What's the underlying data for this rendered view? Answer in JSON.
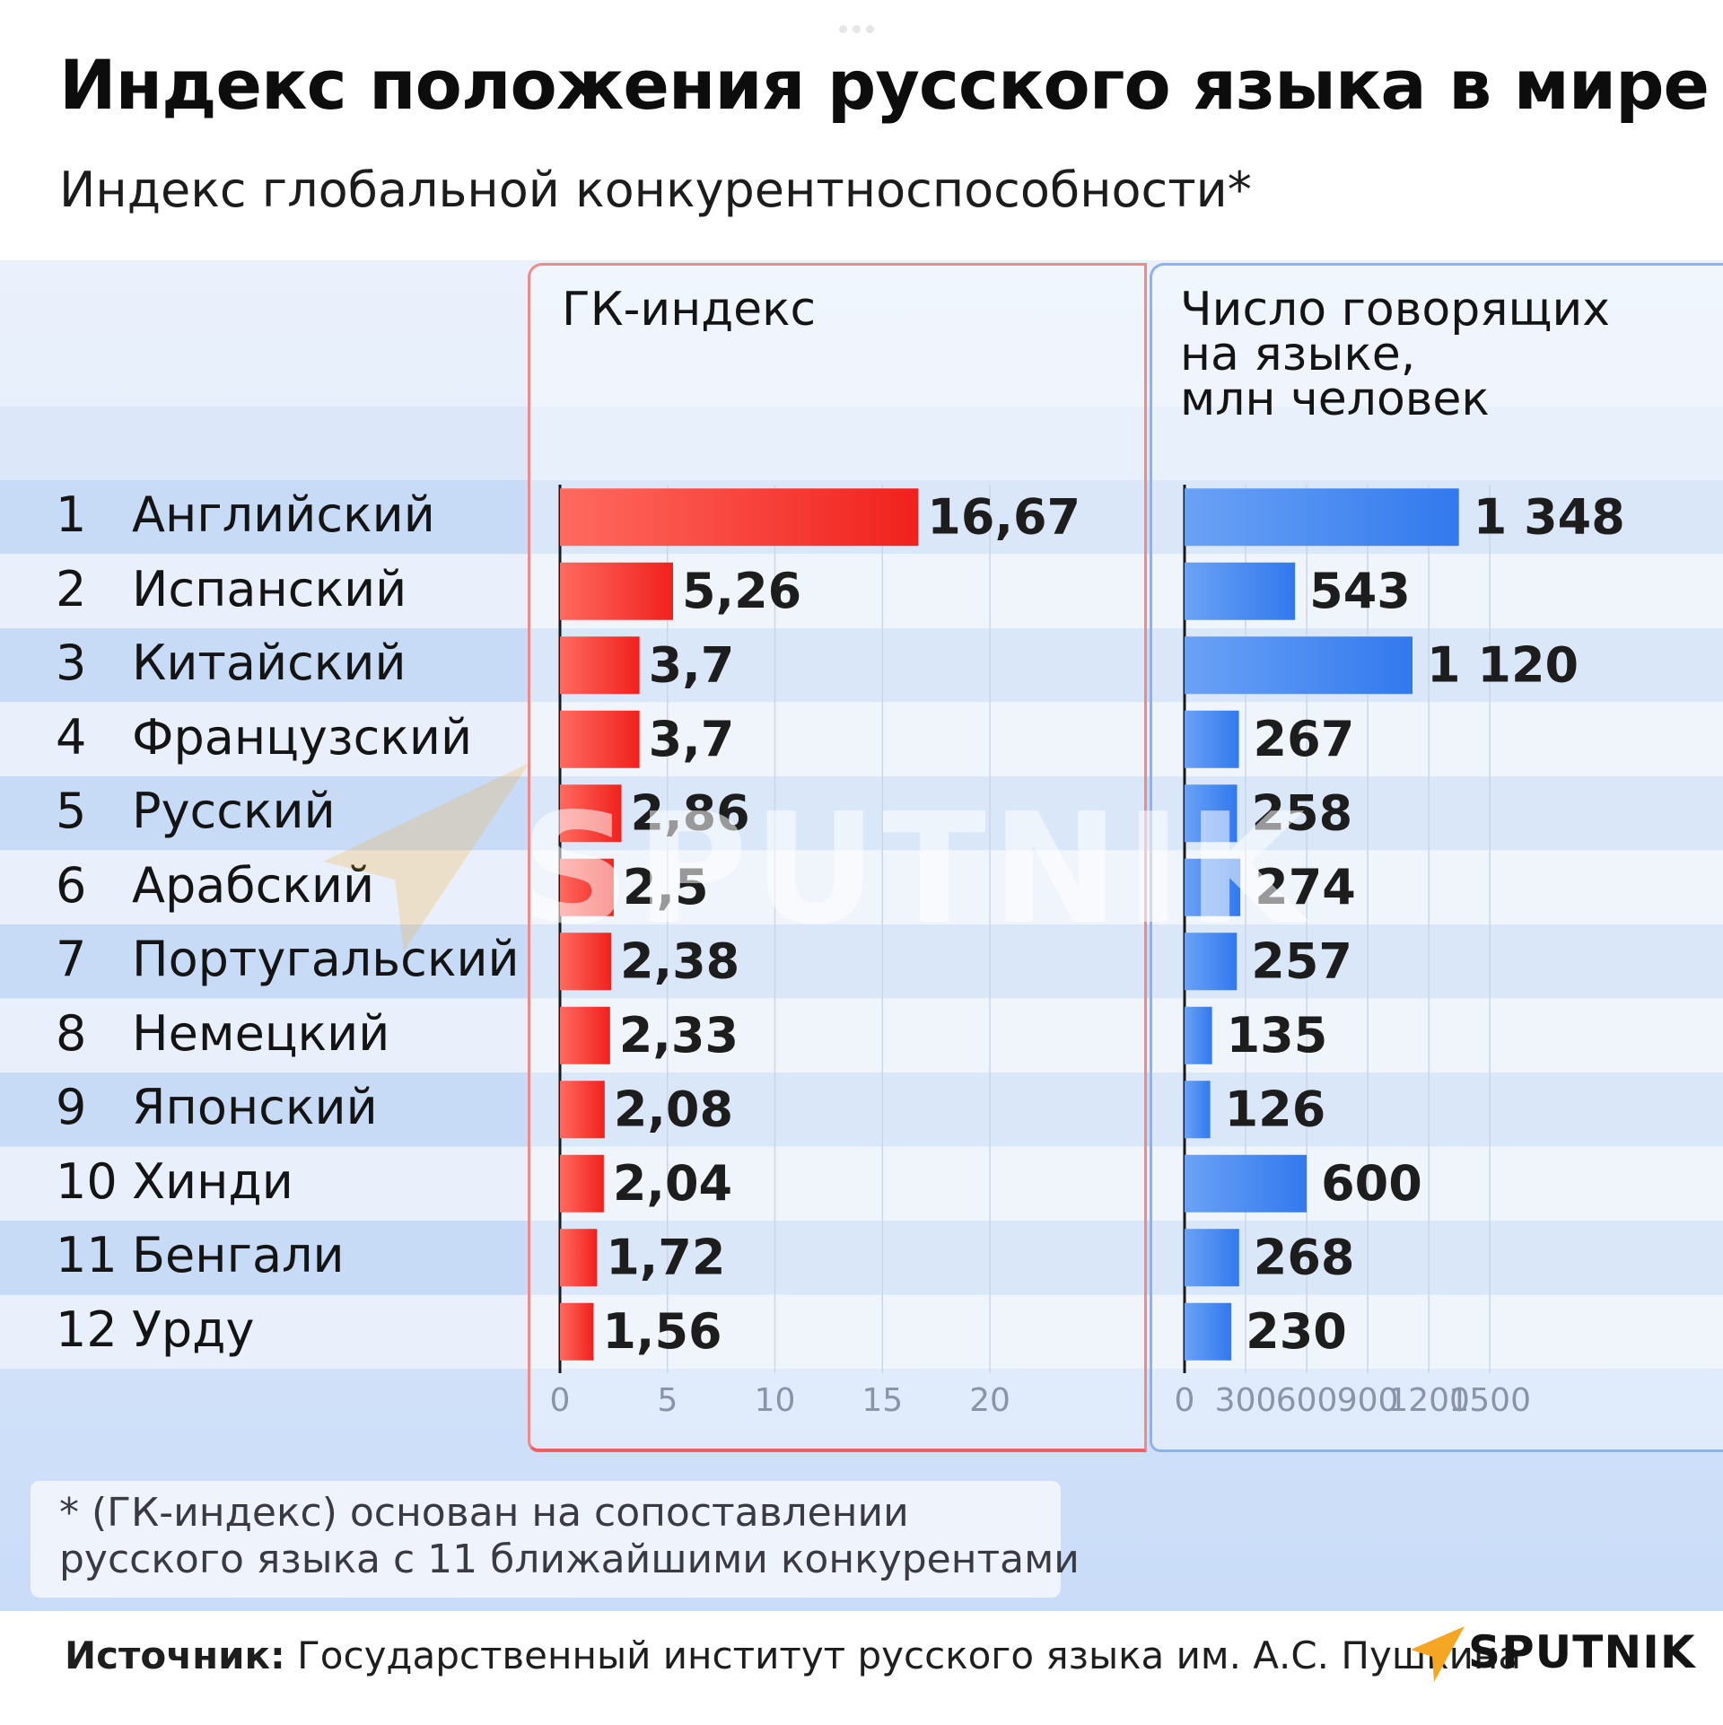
{
  "header": {
    "title": "Индекс положения русского языка в мире",
    "subtitle": "Индекс глобальной конкурентноспособности*"
  },
  "panels": {
    "gk_header": "ГК-индекс",
    "speakers_header": "Число говорящих\nна языке,\nмлн человек"
  },
  "footnote": "* (ГК-индекс) основан на сопоставлении\n   русского языка с 11 ближайшими конкурентами",
  "source": {
    "label": "Источник:",
    "text": " Государственный институт русского языка им. А.С. Пушкина"
  },
  "logo": {
    "text": "SPUTNIK",
    "icon": "sputnik-arrow-icon",
    "color": "#f5a623"
  },
  "colors": {
    "red": "#f0312c",
    "blue": "#3f86f0",
    "row_dark": "#c7dbf6",
    "row_light": "#e9f0fb"
  },
  "chart_data": [
    {
      "type": "bar",
      "orientation": "horizontal",
      "title": "ГК-индекс",
      "categories": [
        "Английский",
        "Испанский",
        "Китайский",
        "Французский",
        "Русский",
        "Арабский",
        "Португальский",
        "Немецкий",
        "Японский",
        "Хинди",
        "Бенгали",
        "Урду"
      ],
      "ranks": [
        "1",
        "2",
        "3",
        "4",
        "5",
        "6",
        "7",
        "8",
        "9",
        "10",
        "11",
        "12"
      ],
      "values": [
        16.67,
        5.26,
        3.7,
        3.7,
        2.86,
        2.5,
        2.38,
        2.33,
        2.08,
        2.04,
        1.72,
        1.56
      ],
      "labels": [
        "16,67",
        "5,26",
        "3,7",
        "3,7",
        "2,86",
        "2,5",
        "2,38",
        "2,33",
        "2,08",
        "2,04",
        "1,72",
        "1,56"
      ],
      "xlim": [
        0,
        21.5
      ],
      "ticks": [
        0,
        5,
        10,
        15,
        20
      ],
      "tick_labels": [
        "0",
        "5",
        "10",
        "15",
        "20"
      ],
      "color": "#f0312c",
      "grid": true
    },
    {
      "type": "bar",
      "orientation": "horizontal",
      "title": "Число говорящих на языке, млн человек",
      "categories": [
        "Английский",
        "Испанский",
        "Китайский",
        "Французский",
        "Русский",
        "Арабский",
        "Португальский",
        "Немецкий",
        "Японский",
        "Хинди",
        "Бенгали",
        "Урду"
      ],
      "values": [
        1348,
        543,
        1120,
        267,
        258,
        274,
        257,
        135,
        126,
        600,
        268,
        230
      ],
      "labels": [
        "1 348",
        "543",
        "1 120",
        "267",
        "258",
        "274",
        "257",
        "135",
        "126",
        "600",
        "268",
        "230"
      ],
      "xlim": [
        0,
        1530
      ],
      "ticks": [
        0,
        300,
        600,
        900,
        1200,
        1500
      ],
      "tick_labels": [
        "0",
        "300",
        "600",
        "900",
        "1200",
        "1500"
      ],
      "color": "#3f86f0",
      "grid": true
    }
  ]
}
